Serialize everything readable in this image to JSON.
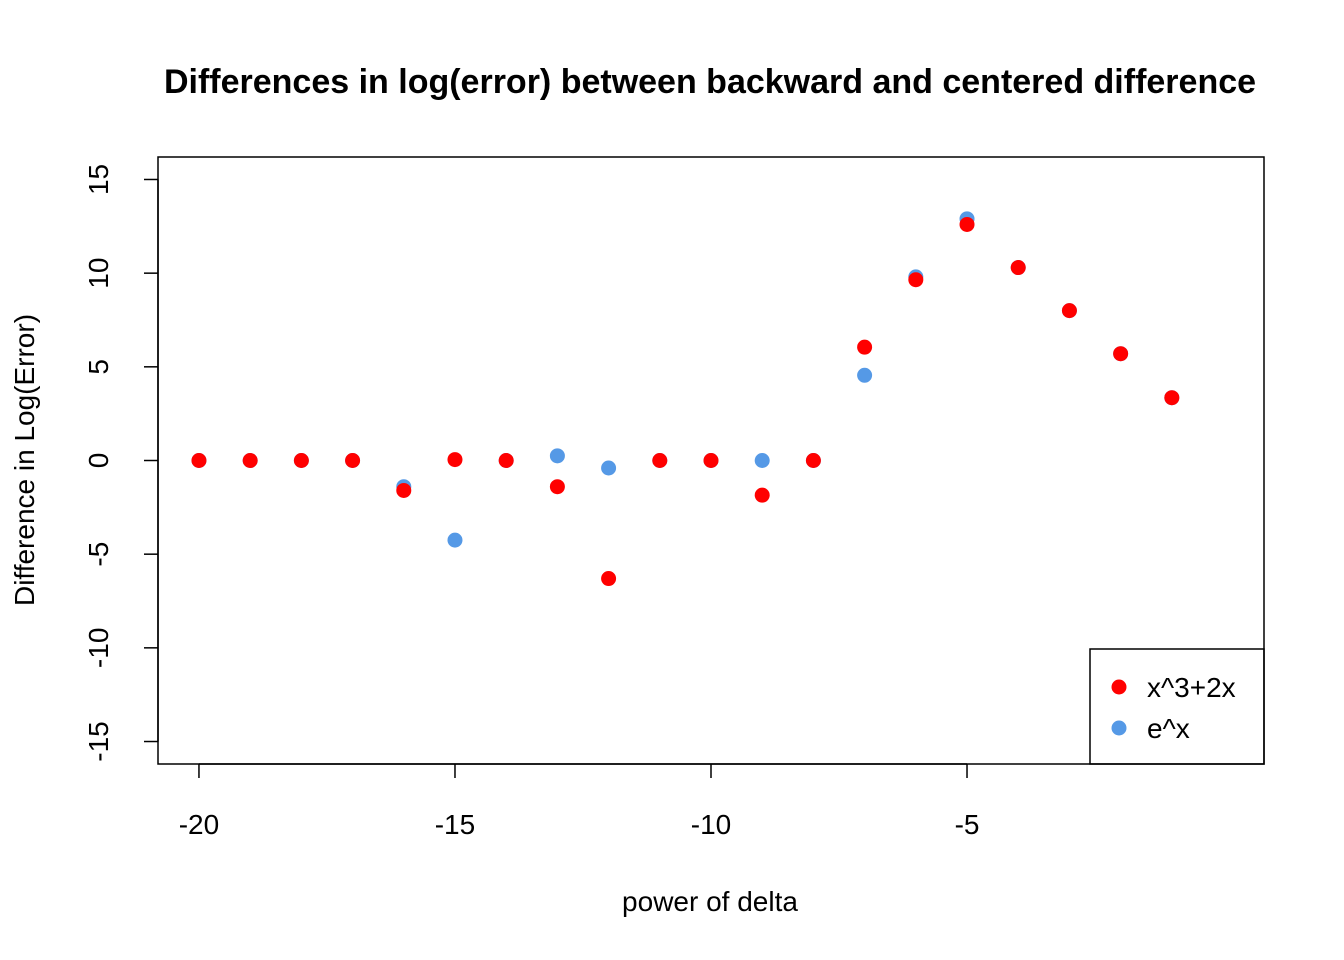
{
  "chart_data": {
    "type": "scatter",
    "title": "Differences in log(error) between backward and centered difference",
    "xlabel": "power of delta",
    "ylabel": "Difference in Log(Error)",
    "xlim": [
      -20.8,
      0.8
    ],
    "ylim": [
      -16.2,
      16.2
    ],
    "xticks": [
      -20,
      -15,
      -10,
      -5
    ],
    "yticks": [
      -15,
      -10,
      -5,
      0,
      5,
      10,
      15
    ],
    "legend_position": "bottom-right",
    "series": [
      {
        "name": "e^x",
        "color": "#5599E6",
        "x": [
          -20,
          -19,
          -18,
          -17,
          -16,
          -15,
          -14,
          -13,
          -12,
          -11,
          -10,
          -9,
          -8,
          -7,
          -6,
          -5,
          -4,
          -3,
          -2,
          -1
        ],
        "y": [
          0,
          0,
          0,
          0,
          -1.4,
          -4.25,
          0,
          0.25,
          -0.4,
          0,
          0,
          0,
          0,
          4.55,
          9.8,
          12.9,
          10.3,
          8.0,
          5.7,
          3.35
        ]
      },
      {
        "name": "x^3+2x",
        "color": "#FF0000",
        "x": [
          -20,
          -19,
          -18,
          -17,
          -16,
          -15,
          -14,
          -13,
          -12,
          -11,
          -10,
          -9,
          -8,
          -7,
          -6,
          -5,
          -4,
          -3,
          -2,
          -1
        ],
        "y": [
          0,
          0,
          0,
          0,
          -1.6,
          0.05,
          0,
          -1.4,
          -6.3,
          0,
          0,
          -1.85,
          0,
          6.05,
          9.65,
          12.6,
          10.3,
          8.0,
          5.7,
          3.35
        ]
      }
    ],
    "legend_order": [
      "x^3+2x",
      "e^x"
    ]
  }
}
